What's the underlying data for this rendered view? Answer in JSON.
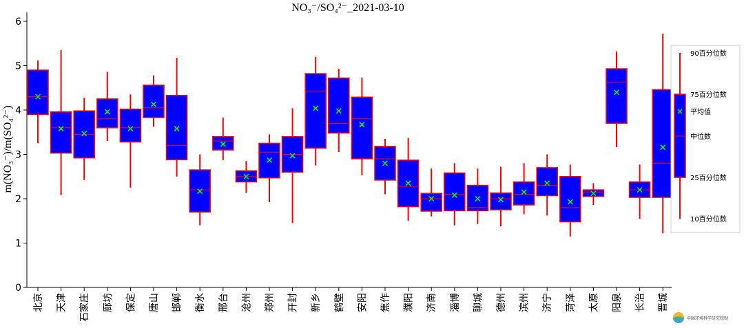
{
  "chart_data": {
    "type": "box",
    "title": "NO₃⁻/SO₄²⁻_2021-03-10",
    "ylabel": "m(NO₃⁻)/m(SO₄²⁻)",
    "xlabel": "",
    "ylim": [
      0,
      6.2
    ],
    "yticks": [
      "0",
      "1",
      "2",
      "3",
      "4",
      "5",
      "6"
    ],
    "grid": false,
    "legend_position": "right",
    "colors": {
      "box_fill": "#0000ff",
      "box_edge": "#ff0000",
      "mean_marker": "#00ff00"
    },
    "categories": [
      "北京",
      "天津",
      "石家庄",
      "廊坊",
      "保定",
      "唐山",
      "邯郸",
      "衡水",
      "邢台",
      "沧州",
      "郑州",
      "开封",
      "新乡",
      "鹤壁",
      "安阳",
      "焦作",
      "濮阳",
      "济南",
      "淄博",
      "聊城",
      "德州",
      "滨州",
      "济宁",
      "菏泽",
      "太原",
      "阳泉",
      "长治",
      "晋城"
    ],
    "series": [
      {
        "p10": 3.25,
        "q1": 3.9,
        "median": 4.3,
        "mean": 4.3,
        "q3": 4.9,
        "p90": 5.12
      },
      {
        "p10": 2.08,
        "q1": 3.03,
        "median": 3.6,
        "mean": 3.58,
        "q3": 3.96,
        "p90": 5.35
      },
      {
        "p10": 2.42,
        "q1": 2.92,
        "median": 3.45,
        "mean": 3.47,
        "q3": 3.98,
        "p90": 4.28
      },
      {
        "p10": 3.3,
        "q1": 3.6,
        "median": 3.8,
        "mean": 3.96,
        "q3": 4.25,
        "p90": 4.86
      },
      {
        "p10": 2.25,
        "q1": 3.28,
        "median": 3.6,
        "mean": 3.58,
        "q3": 4.02,
        "p90": 4.35
      },
      {
        "p10": 3.62,
        "q1": 3.83,
        "median": 4.05,
        "mean": 4.13,
        "q3": 4.56,
        "p90": 4.78
      },
      {
        "p10": 2.5,
        "q1": 2.88,
        "median": 3.2,
        "mean": 3.58,
        "q3": 4.33,
        "p90": 5.18
      },
      {
        "p10": 1.4,
        "q1": 1.7,
        "median": 2.2,
        "mean": 2.17,
        "q3": 2.65,
        "p90": 3.0
      },
      {
        "p10": 2.87,
        "q1": 3.1,
        "median": 3.3,
        "mean": 3.23,
        "q3": 3.4,
        "p90": 3.83
      },
      {
        "p10": 2.13,
        "q1": 2.38,
        "median": 2.5,
        "mean": 2.5,
        "q3": 2.63,
        "p90": 2.85
      },
      {
        "p10": 1.92,
        "q1": 2.47,
        "median": 3.05,
        "mean": 2.87,
        "q3": 3.25,
        "p90": 3.45
      },
      {
        "p10": 1.45,
        "q1": 2.6,
        "median": 3.0,
        "mean": 2.97,
        "q3": 3.4,
        "p90": 4.04
      },
      {
        "p10": 2.75,
        "q1": 3.14,
        "median": 4.43,
        "mean": 4.04,
        "q3": 4.82,
        "p90": 5.2
      },
      {
        "p10": 3.05,
        "q1": 3.48,
        "median": 3.7,
        "mean": 3.98,
        "q3": 4.72,
        "p90": 4.93
      },
      {
        "p10": 2.53,
        "q1": 2.9,
        "median": 3.8,
        "mean": 3.67,
        "q3": 4.29,
        "p90": 4.73
      },
      {
        "p10": 2.1,
        "q1": 2.42,
        "median": 2.9,
        "mean": 2.8,
        "q3": 3.18,
        "p90": 3.35
      },
      {
        "p10": 1.5,
        "q1": 1.82,
        "median": 2.28,
        "mean": 2.35,
        "q3": 2.87,
        "p90": 3.37
      },
      {
        "p10": 1.6,
        "q1": 1.72,
        "median": 2.0,
        "mean": 2.0,
        "q3": 2.12,
        "p90": 2.68
      },
      {
        "p10": 1.4,
        "q1": 1.73,
        "median": 2.1,
        "mean": 2.08,
        "q3": 2.58,
        "p90": 2.8
      },
      {
        "p10": 1.43,
        "q1": 1.73,
        "median": 1.8,
        "mean": 2.0,
        "q3": 2.3,
        "p90": 2.68
      },
      {
        "p10": 1.38,
        "q1": 1.75,
        "median": 2.0,
        "mean": 1.98,
        "q3": 2.13,
        "p90": 2.72
      },
      {
        "p10": 1.65,
        "q1": 1.86,
        "median": 2.1,
        "mean": 2.15,
        "q3": 2.38,
        "p90": 2.8
      },
      {
        "p10": 1.62,
        "q1": 2.07,
        "median": 2.3,
        "mean": 2.35,
        "q3": 2.7,
        "p90": 3.0
      },
      {
        "p10": 1.15,
        "q1": 1.48,
        "median": 1.8,
        "mean": 1.93,
        "q3": 2.5,
        "p90": 2.77
      },
      {
        "p10": 1.86,
        "q1": 2.05,
        "median": 2.15,
        "mean": 2.12,
        "q3": 2.2,
        "p90": 2.35
      },
      {
        "p10": 3.16,
        "q1": 3.7,
        "median": 4.63,
        "mean": 4.4,
        "q3": 4.93,
        "p90": 5.32
      },
      {
        "p10": 1.55,
        "q1": 2.03,
        "median": 2.2,
        "mean": 2.2,
        "q3": 2.38,
        "p90": 2.77
      },
      {
        "p10": 1.22,
        "q1": 2.03,
        "median": 2.8,
        "mean": 3.16,
        "q3": 4.46,
        "p90": 5.72
      }
    ],
    "legend": {
      "p90": "90百分位数",
      "q3": "75百分位数",
      "mean": "平均值",
      "median": "中位数",
      "q1": "25百分位数",
      "p10": "10百分位数"
    }
  },
  "logo": {
    "name": "logo-icon",
    "text": "中国环境科学研究院制"
  }
}
